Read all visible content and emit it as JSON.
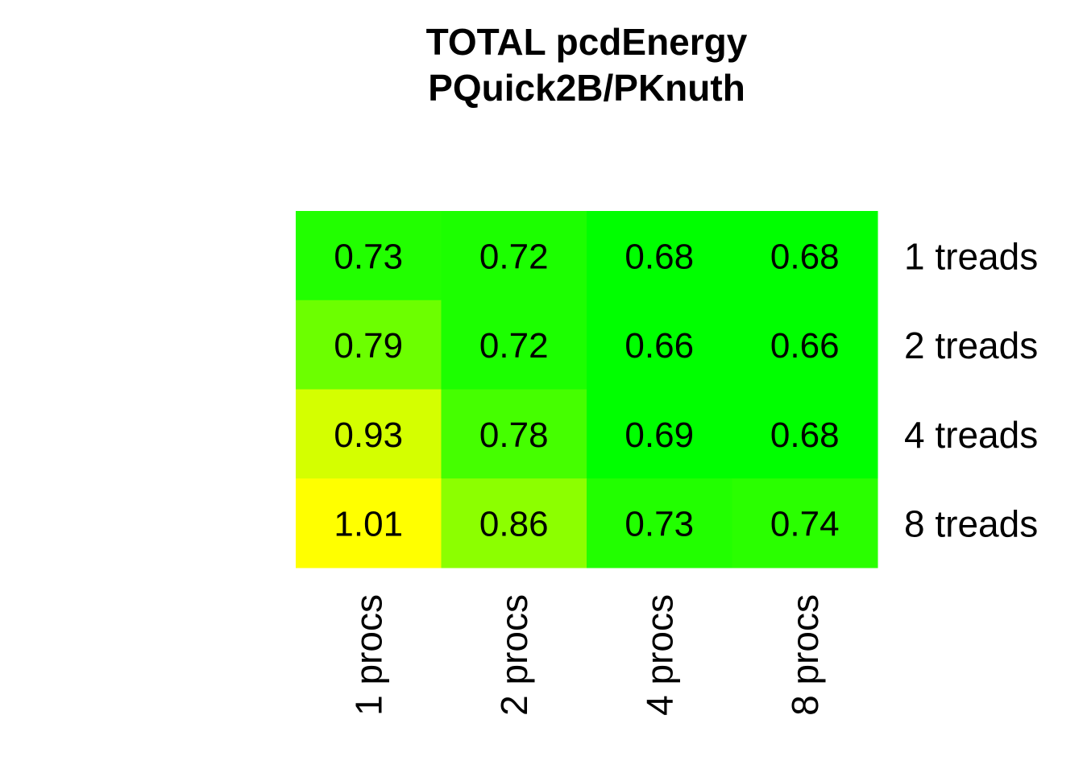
{
  "chart_data": {
    "type": "heatmap",
    "title_lines": [
      "TOTAL  pcdEnergy",
      "PQuick2B/PKnuth"
    ],
    "columns": [
      "1 procs",
      "2 procs",
      "4 procs",
      "8 procs"
    ],
    "rows": [
      "1 treads",
      "2 treads",
      "4 treads",
      "8 treads"
    ],
    "values": [
      [
        0.73,
        0.72,
        0.68,
        0.68
      ],
      [
        0.79,
        0.72,
        0.66,
        0.66
      ],
      [
        0.93,
        0.78,
        0.69,
        0.68
      ],
      [
        1.01,
        0.86,
        0.73,
        0.74
      ]
    ],
    "value_labels": [
      [
        "0.73",
        "0.72",
        "0.68",
        "0.68"
      ],
      [
        "0.79",
        "0.72",
        "0.66",
        "0.66"
      ],
      [
        "0.93",
        "0.78",
        "0.69",
        "0.68"
      ],
      [
        "1.01",
        "0.86",
        "0.73",
        "0.74"
      ]
    ],
    "colors": [
      [
        "#22ff00",
        "#1cff00",
        "#00ff00",
        "#00ff00"
      ],
      [
        "#6cff00",
        "#1cff00",
        "#00ff00",
        "#00ff00"
      ],
      [
        "#d4ff00",
        "#45ff00",
        "#00ff00",
        "#00ff00"
      ],
      [
        "#ffff00",
        "#8cff00",
        "#22ff00",
        "#2aff00"
      ]
    ],
    "color_scale": {
      "low": "#00ff00",
      "high": "#ffff00"
    }
  }
}
